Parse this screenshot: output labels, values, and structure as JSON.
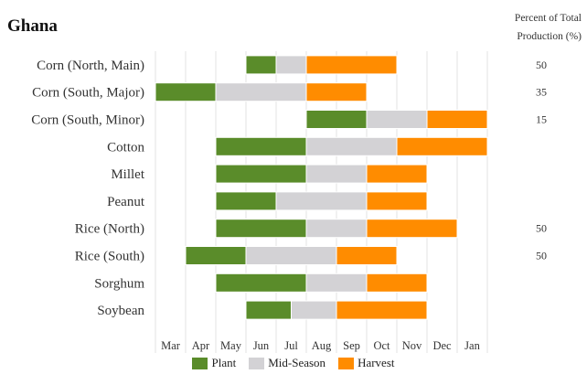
{
  "chart_data": {
    "type": "bar",
    "subtype": "crop-calendar-gantt",
    "title": "Ghana",
    "right_header": [
      "Percent of Total",
      "Production (%)"
    ],
    "months": [
      "Mar",
      "Apr",
      "May",
      "Jun",
      "Jul",
      "Aug",
      "Sep",
      "Oct",
      "Nov",
      "Dec",
      "Jan"
    ],
    "series": [
      {
        "name": "Plant",
        "color": "#5a8c2a"
      },
      {
        "name": "Mid-Season",
        "color": "#d3d2d5"
      },
      {
        "name": "Harvest",
        "color": "#ff8c00"
      }
    ],
    "crops": [
      {
        "name": "Corn (North, Main)",
        "percent": "50",
        "segments": [
          {
            "phase": "Plant",
            "start": 3.0,
            "end": 4.0
          },
          {
            "phase": "Mid-Season",
            "start": 4.0,
            "end": 5.0
          },
          {
            "phase": "Harvest",
            "start": 5.0,
            "end": 8.0
          }
        ]
      },
      {
        "name": "Corn (South, Major)",
        "percent": "35",
        "segments": [
          {
            "phase": "Plant",
            "start": 0.0,
            "end": 2.0
          },
          {
            "phase": "Mid-Season",
            "start": 2.0,
            "end": 5.0
          },
          {
            "phase": "Harvest",
            "start": 5.0,
            "end": 7.0
          }
        ]
      },
      {
        "name": "Corn (South, Minor)",
        "percent": "15",
        "segments": [
          {
            "phase": "Plant",
            "start": 5.0,
            "end": 7.0
          },
          {
            "phase": "Mid-Season",
            "start": 7.0,
            "end": 9.0
          },
          {
            "phase": "Harvest",
            "start": 9.0,
            "end": 11.0
          }
        ]
      },
      {
        "name": "Cotton",
        "percent": "",
        "segments": [
          {
            "phase": "Plant",
            "start": 2.0,
            "end": 5.0
          },
          {
            "phase": "Mid-Season",
            "start": 5.0,
            "end": 8.0
          },
          {
            "phase": "Harvest",
            "start": 8.0,
            "end": 11.0
          }
        ]
      },
      {
        "name": "Millet",
        "percent": "",
        "segments": [
          {
            "phase": "Plant",
            "start": 2.0,
            "end": 5.0
          },
          {
            "phase": "Mid-Season",
            "start": 5.0,
            "end": 7.0
          },
          {
            "phase": "Harvest",
            "start": 7.0,
            "end": 9.0
          }
        ]
      },
      {
        "name": "Peanut",
        "percent": "",
        "segments": [
          {
            "phase": "Plant",
            "start": 2.0,
            "end": 4.0
          },
          {
            "phase": "Mid-Season",
            "start": 4.0,
            "end": 7.0
          },
          {
            "phase": "Harvest",
            "start": 7.0,
            "end": 9.0
          }
        ]
      },
      {
        "name": "Rice (North)",
        "percent": "50",
        "segments": [
          {
            "phase": "Plant",
            "start": 2.0,
            "end": 5.0
          },
          {
            "phase": "Mid-Season",
            "start": 5.0,
            "end": 7.0
          },
          {
            "phase": "Harvest",
            "start": 7.0,
            "end": 10.0
          }
        ]
      },
      {
        "name": "Rice (South)",
        "percent": "50",
        "segments": [
          {
            "phase": "Plant",
            "start": 1.0,
            "end": 3.0
          },
          {
            "phase": "Mid-Season",
            "start": 3.0,
            "end": 6.0
          },
          {
            "phase": "Harvest",
            "start": 6.0,
            "end": 8.0
          }
        ]
      },
      {
        "name": "Sorghum",
        "percent": "",
        "segments": [
          {
            "phase": "Plant",
            "start": 2.0,
            "end": 5.0
          },
          {
            "phase": "Mid-Season",
            "start": 5.0,
            "end": 7.0
          },
          {
            "phase": "Harvest",
            "start": 7.0,
            "end": 9.0
          }
        ]
      },
      {
        "name": "Soybean",
        "percent": "",
        "segments": [
          {
            "phase": "Plant",
            "start": 3.0,
            "end": 4.5
          },
          {
            "phase": "Mid-Season",
            "start": 4.5,
            "end": 6.0
          },
          {
            "phase": "Harvest",
            "start": 6.0,
            "end": 9.0
          }
        ]
      }
    ]
  }
}
